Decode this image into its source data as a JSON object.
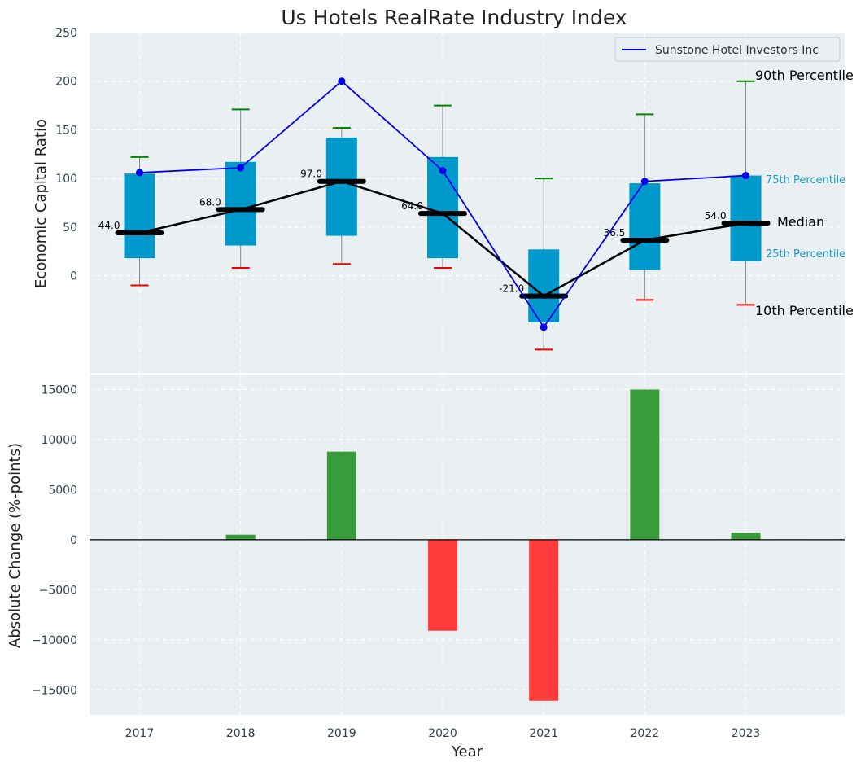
{
  "chart_data": [
    {
      "type": "box",
      "title": "Us Hotels RealRate Industry Index",
      "ylabel": "Economic Capital Ratio",
      "ylim": [
        -100,
        250
      ],
      "yticks": [
        0,
        50,
        100,
        150,
        200,
        250
      ],
      "categories": [
        "2017",
        "2018",
        "2019",
        "2020",
        "2021",
        "2022",
        "2023"
      ],
      "p10": [
        -10,
        8,
        12,
        8,
        -76,
        -25,
        -30
      ],
      "p25": [
        18,
        31,
        41,
        18,
        -48,
        6,
        15
      ],
      "median": [
        44.0,
        68.0,
        97.0,
        64.0,
        -21.0,
        36.5,
        54.0
      ],
      "median_labels": [
        "44.0",
        "68.0",
        "97.0",
        "64.0",
        "-21.0",
        "36.5",
        "54.0"
      ],
      "p75": [
        105,
        117,
        142,
        122,
        27,
        95,
        103
      ],
      "p90": [
        122,
        171,
        152,
        175,
        100,
        166,
        200
      ],
      "series": [
        {
          "name": "Sunstone Hotel Investors Inc",
          "values": [
            106,
            111,
            200,
            108,
            -53,
            97,
            103
          ]
        }
      ],
      "annotations": {
        "p90": "90th Percentile",
        "p75": "75th Percentile",
        "median": "Median",
        "p25": "25th Percentile",
        "p10": "10th Percentile"
      },
      "legend": "top-right",
      "grid": true
    },
    {
      "type": "bar",
      "xlabel": "Year",
      "ylabel": "Absolute Change (%-points)",
      "ylim": [
        -17500,
        16500
      ],
      "yticks": [
        -15000,
        -10000,
        -5000,
        0,
        5000,
        10000,
        15000
      ],
      "yticklabels": [
        "−15000",
        "−10000",
        "−5000",
        "0",
        "5000",
        "10000",
        "15000"
      ],
      "categories": [
        "2017",
        "2018",
        "2019",
        "2020",
        "2021",
        "2022",
        "2023"
      ],
      "values": [
        0,
        500,
        8800,
        -9100,
        -16100,
        15000,
        700
      ],
      "grid": true
    }
  ],
  "colors": {
    "box": "#0099cc",
    "series": "#0000ee",
    "median_line": "#000000",
    "p90_cap": "#008800",
    "p10_cap": "#ee0000",
    "whisker": "#888888",
    "positive": "#3a9b3a",
    "negative": "#ff3b3b",
    "panel_bg": "#eaeff1"
  }
}
